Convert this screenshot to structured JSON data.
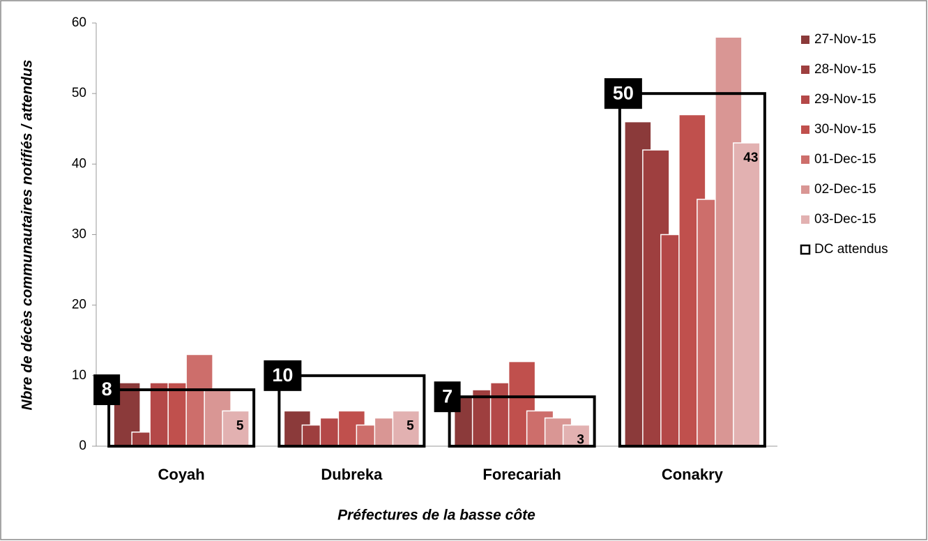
{
  "chart_data": {
    "type": "bar",
    "x_label": "Préfectures de la basse côte",
    "y_label": "Nbre de décès communautaires notifiés / attendus",
    "categories": [
      "Coyah",
      "Dubreka",
      "Forecariah",
      "Conakry"
    ],
    "series": [
      {
        "name": "27-Nov-15",
        "color": "#8b3a3a",
        "values": [
          9,
          5,
          7,
          46
        ]
      },
      {
        "name": "28-Nov-15",
        "color": "#9e3f3f",
        "values": [
          2,
          3,
          8,
          42
        ]
      },
      {
        "name": "29-Nov-15",
        "color": "#b44848",
        "values": [
          9,
          4,
          9,
          30
        ]
      },
      {
        "name": "30-Nov-15",
        "color": "#c0504d",
        "values": [
          9,
          5,
          12,
          47
        ]
      },
      {
        "name": "01-Dec-15",
        "color": "#cd6e6b",
        "values": [
          13,
          3,
          5,
          35
        ]
      },
      {
        "name": "02-Dec-15",
        "color": "#d99694",
        "values": [
          8,
          4,
          4,
          58
        ]
      },
      {
        "name": "03-Dec-15",
        "color": "#e2b1b1",
        "values": [
          5,
          5,
          3,
          43
        ],
        "data_labels": true
      },
      {
        "name": "DC attendus",
        "color": "#000000",
        "values": [
          8,
          10,
          7,
          50
        ],
        "kind": "outline",
        "data_labels": true
      }
    ],
    "ylim": [
      0,
      60
    ],
    "yticks": [
      0,
      10,
      20,
      30,
      40,
      50,
      60
    ],
    "grid": false,
    "legend": "right"
  }
}
